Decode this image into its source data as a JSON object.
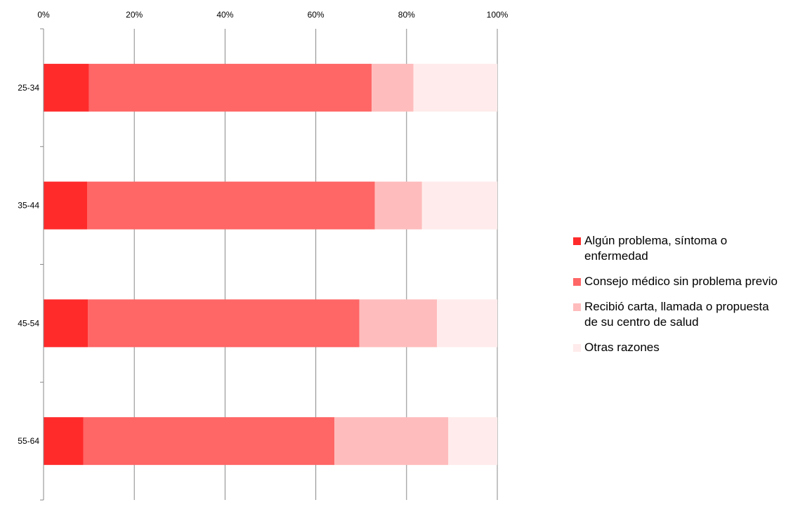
{
  "chart_data": {
    "type": "bar",
    "orientation": "horizontal",
    "stacked": "percent",
    "categories": [
      "25-34",
      "35-44",
      "45-54",
      "55-64"
    ],
    "series": [
      {
        "name": "Algún problema, síntoma o enfermedad",
        "color": "#ff2b2b",
        "values": [
          10,
          9.6,
          9.8,
          8.8
        ]
      },
      {
        "name": "Consejo médico sin problema previo",
        "color": "#ff6666",
        "values": [
          62.3,
          63.4,
          59.8,
          55.3
        ]
      },
      {
        "name": "Recibió carta, llamada o propuesta de su centro de salud",
        "color": "#ffbcbc",
        "values": [
          9.2,
          10.4,
          17.1,
          25.1
        ]
      },
      {
        "name": "Otras razones",
        "color": "#ffebeb",
        "values": [
          18.5,
          16.6,
          13.3,
          10.8
        ]
      }
    ],
    "xlim": [
      0,
      100
    ],
    "x_ticks": [
      "0%",
      "20%",
      "40%",
      "60%",
      "80%",
      "100%"
    ],
    "grid": true,
    "legend_position": "right"
  }
}
